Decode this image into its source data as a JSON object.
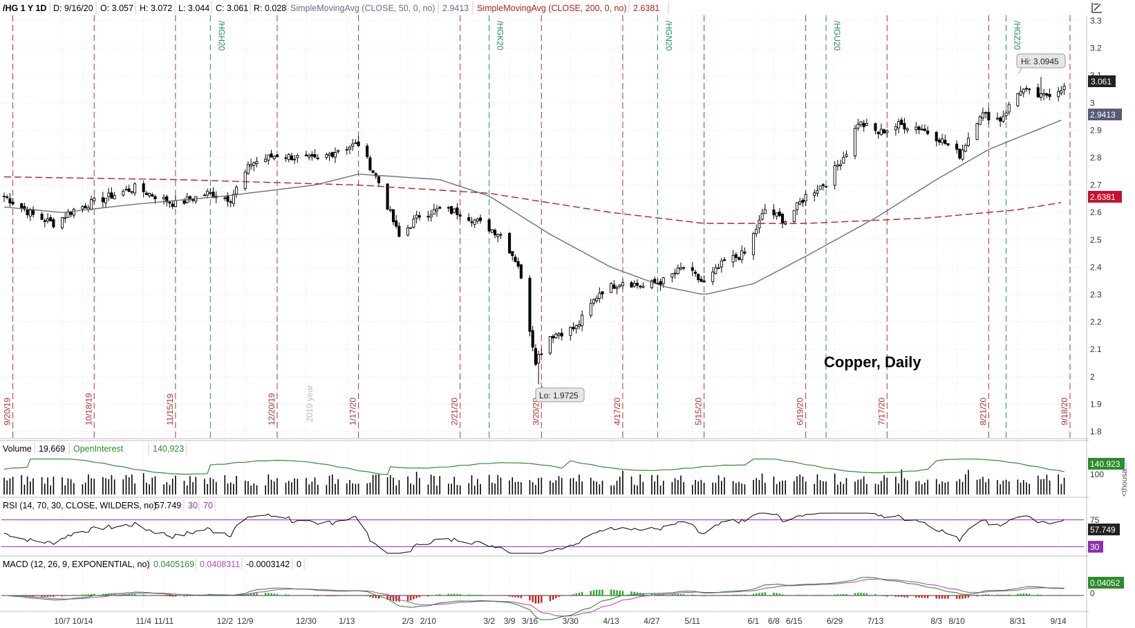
{
  "header": {
    "symbol": "/HG 1 Y 1D",
    "date": "D: 9/16/20",
    "open": "O: 3.057",
    "high": "H: 3.072",
    "low": "L: 3.044",
    "close": "C: 3.061",
    "range": "R: 0.028",
    "sma50_label": "SimpleMovingAvg (CLOSE, 50, 0, no)",
    "sma50_value": "2.9413",
    "sma200_label": "SimpleMovingAvg (CLOSE, 200, 0, no)",
    "sma200_value": "2.6381"
  },
  "colors": {
    "up_candle": "#ffffff",
    "candle": "#000000",
    "sma50": "#6a6a8a",
    "sma200": "#b22222",
    "expiry_red": "#b03030",
    "roll_green": "#1f8f5f",
    "volume_bar": "#000000",
    "open_interest": "#2e8b2e",
    "rsi_line": "#000000",
    "rsi_bands": "#8b2fb5",
    "macd_value": "#2e8b2e",
    "macd_avg": "#b04ac0",
    "macd_hist_pos": "#22aa22",
    "macd_hist_neg": "#cc2222"
  },
  "annotation": "Copper, Daily",
  "hi_label": "Hi: 3.0945",
  "lo_label": "Lo: 1.9725",
  "year_marker": "2019 year",
  "price_axis": [
    "3.3",
    "3.2",
    "3.1",
    "3",
    "2.9",
    "2.8",
    "2.7",
    "2.6",
    "2.5",
    "2.4",
    "2.3",
    "2.2",
    "2.1",
    "2",
    "1.9",
    "1.8"
  ],
  "price_badges": {
    "last": "3.061",
    "sma50": "2.9413",
    "sma200": "2.6381"
  },
  "expiry_labels": [
    "9/20/19",
    "10/18/19",
    "11/15/19",
    "12/20/19",
    "1/17/20",
    "2/21/20",
    "3/20/20",
    "4/17/20",
    "5/15/20",
    "6/19/20",
    "7/17/20",
    "8/21/20",
    "9/18/20"
  ],
  "roll_labels": [
    "/HGH20",
    "/HGK20",
    "/HGN20",
    "/HGU20",
    "/HGZ20"
  ],
  "x_axis_labels": [
    "10/7",
    "10/14",
    "11/4",
    "11/11",
    "12/2",
    "12/9",
    "12/30",
    "1/13",
    "2/3",
    "2/10",
    "3/2",
    "3/9",
    "3/16",
    "3/30",
    "4/13",
    "4/27",
    "5/11",
    "6/1",
    "6/8",
    "6/15",
    "6/29",
    "7/13",
    "8/3",
    "8/10",
    "8/31",
    "9/14"
  ],
  "volume_panel": {
    "title": "Volume",
    "volume": "19,669",
    "oi_label": "OpenInterest",
    "oi_value": "140,923",
    "axis_label": "100",
    "badge": "140.923",
    "unit": "<thousa..."
  },
  "rsi_panel": {
    "title": "RSI (14, 70, 30, CLOSE, WILDERS, no)",
    "value": "57.749",
    "lower": "30",
    "upper": "70",
    "axis_label": "75",
    "badge": "57.749",
    "badge_lower": "30"
  },
  "macd_panel": {
    "title": "MACD (12, 26, 9, EXPONENTIAL, no)",
    "value": "0.0405169",
    "avg": "0.0408311",
    "diff": "-0.0003142",
    "zero": "0",
    "badge": "0.04052",
    "axis_label": "0"
  },
  "chart_data": {
    "type": "candlestick",
    "title": "Copper, Daily",
    "ylim": [
      1.78,
      3.32
    ],
    "x_range": [
      "9/17/19",
      "9/18/20"
    ],
    "summary": {
      "last": 3.061,
      "high": 3.0945,
      "low": 1.9725,
      "sma50": 2.9413,
      "sma200": 2.6381
    },
    "close_anchors": [
      {
        "date": "9/17/19",
        "close": 2.66
      },
      {
        "date": "9/27/19",
        "close": 2.59
      },
      {
        "date": "10/4/19",
        "close": 2.56
      },
      {
        "date": "10/11/19",
        "close": 2.61
      },
      {
        "date": "10/21/19",
        "close": 2.65
      },
      {
        "date": "11/1/19",
        "close": 2.69
      },
      {
        "date": "11/8/19",
        "close": 2.66
      },
      {
        "date": "11/15/19",
        "close": 2.63
      },
      {
        "date": "11/26/19",
        "close": 2.67
      },
      {
        "date": "12/4/19",
        "close": 2.65
      },
      {
        "date": "12/11/19",
        "close": 2.78
      },
      {
        "date": "12/20/19",
        "close": 2.81
      },
      {
        "date": "1/3/20",
        "close": 2.79
      },
      {
        "date": "1/10/20",
        "close": 2.83
      },
      {
        "date": "1/17/20",
        "close": 2.85
      },
      {
        "date": "1/24/20",
        "close": 2.71
      },
      {
        "date": "1/31/20",
        "close": 2.51
      },
      {
        "date": "2/7/20",
        "close": 2.59
      },
      {
        "date": "2/14/20",
        "close": 2.61
      },
      {
        "date": "2/21/20",
        "close": 2.6
      },
      {
        "date": "2/28/20",
        "close": 2.56
      },
      {
        "date": "3/6/20",
        "close": 2.52
      },
      {
        "date": "3/12/20",
        "close": 2.41
      },
      {
        "date": "3/18/20",
        "close": 2.06
      },
      {
        "date": "3/23/20",
        "close": 2.15
      },
      {
        "date": "4/1/20",
        "close": 2.18
      },
      {
        "date": "4/9/20",
        "close": 2.31
      },
      {
        "date": "4/17/20",
        "close": 2.35
      },
      {
        "date": "4/24/20",
        "close": 2.33
      },
      {
        "date": "5/1/20",
        "close": 2.35
      },
      {
        "date": "5/8/20",
        "close": 2.4
      },
      {
        "date": "5/15/20",
        "close": 2.34
      },
      {
        "date": "5/22/20",
        "close": 2.42
      },
      {
        "date": "5/29/20",
        "close": 2.45
      },
      {
        "date": "6/5/20",
        "close": 2.61
      },
      {
        "date": "6/12/20",
        "close": 2.57
      },
      {
        "date": "6/19/20",
        "close": 2.66
      },
      {
        "date": "6/26/20",
        "close": 2.71
      },
      {
        "date": "7/3/20",
        "close": 2.82
      },
      {
        "date": "7/7/20",
        "close": 2.93
      },
      {
        "date": "7/14/20",
        "close": 2.89
      },
      {
        "date": "7/21/20",
        "close": 2.92
      },
      {
        "date": "7/28/20",
        "close": 2.91
      },
      {
        "date": "8/4/20",
        "close": 2.87
      },
      {
        "date": "8/11/20",
        "close": 2.81
      },
      {
        "date": "8/18/20",
        "close": 2.96
      },
      {
        "date": "8/25/20",
        "close": 2.94
      },
      {
        "date": "9/1/20",
        "close": 3.05
      },
      {
        "date": "9/8/20",
        "close": 3.02
      },
      {
        "date": "9/16/20",
        "close": 3.061
      }
    ],
    "sma50": [
      {
        "date": "9/17/19",
        "value": 2.62
      },
      {
        "date": "10/7/19",
        "value": 2.6
      },
      {
        "date": "11/1/19",
        "value": 2.63
      },
      {
        "date": "12/2/19",
        "value": 2.66
      },
      {
        "date": "1/2/20",
        "value": 2.7
      },
      {
        "date": "1/17/20",
        "value": 2.74
      },
      {
        "date": "2/14/20",
        "value": 2.72
      },
      {
        "date": "3/2/20",
        "value": 2.66
      },
      {
        "date": "3/23/20",
        "value": 2.52
      },
      {
        "date": "4/13/20",
        "value": 2.4
      },
      {
        "date": "5/1/20",
        "value": 2.33
      },
      {
        "date": "5/15/20",
        "value": 2.3
      },
      {
        "date": "6/1/20",
        "value": 2.34
      },
      {
        "date": "6/19/20",
        "value": 2.44
      },
      {
        "date": "7/13/20",
        "value": 2.58
      },
      {
        "date": "8/3/20",
        "value": 2.72
      },
      {
        "date": "8/21/20",
        "value": 2.83
      },
      {
        "date": "9/16/20",
        "value": 2.9413
      }
    ],
    "sma200": [
      {
        "date": "9/17/19",
        "value": 2.73
      },
      {
        "date": "11/15/19",
        "value": 2.72
      },
      {
        "date": "1/17/20",
        "value": 2.7
      },
      {
        "date": "3/2/20",
        "value": 2.67
      },
      {
        "date": "4/13/20",
        "value": 2.6
      },
      {
        "date": "5/15/20",
        "value": 2.56
      },
      {
        "date": "6/19/20",
        "value": 2.56
      },
      {
        "date": "7/31/20",
        "value": 2.58
      },
      {
        "date": "8/31/20",
        "value": 2.61
      },
      {
        "date": "9/16/20",
        "value": 2.6381
      }
    ],
    "volume_axis_max": 150,
    "rsi_ylim": [
      20,
      80
    ],
    "rsi_levels": [
      30,
      70
    ],
    "macd_last": {
      "value": 0.0405169,
      "avg": 0.0408311,
      "diff": -0.0003142
    }
  }
}
